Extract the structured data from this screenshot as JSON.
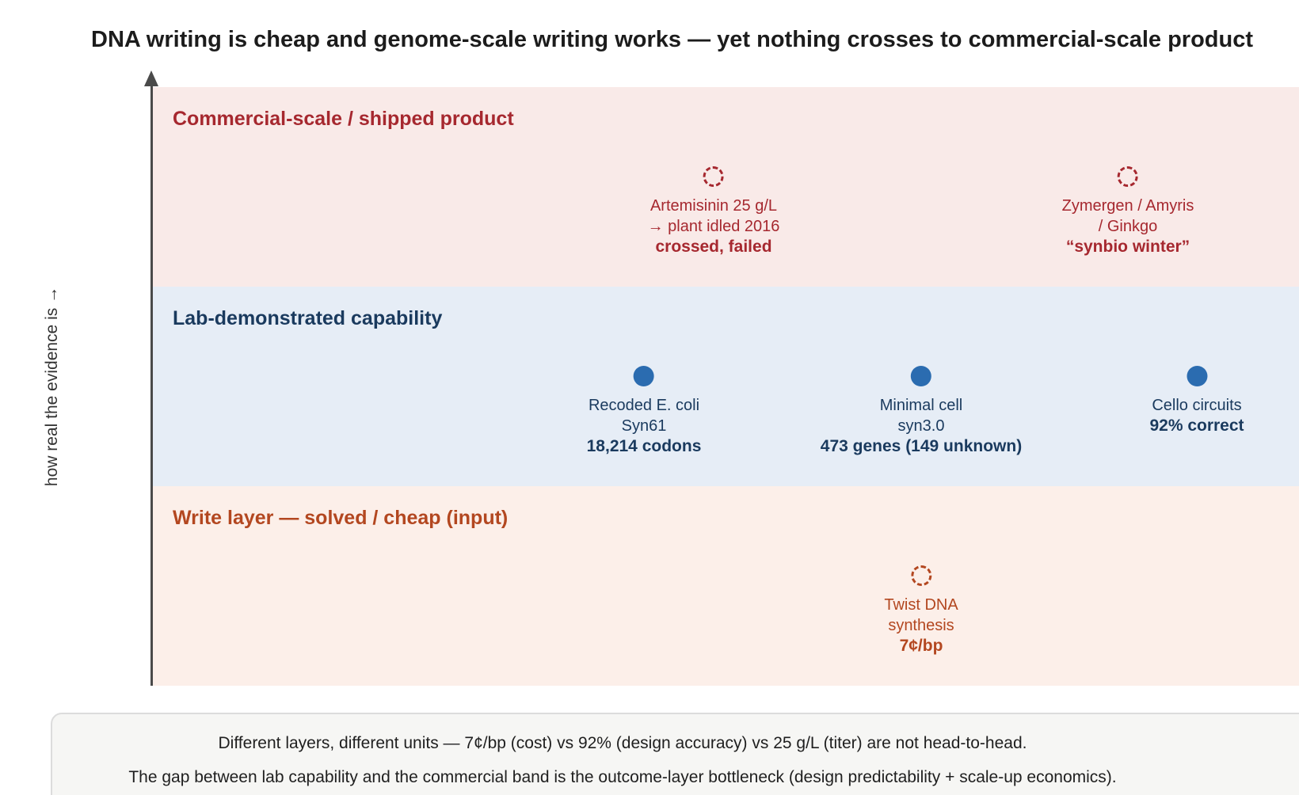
{
  "title": "DNA writing is cheap and genome-scale writing works — yet nothing crosses to commercial-scale product",
  "y_axis": {
    "label": "how real the evidence is →"
  },
  "colors": {
    "commercial": "#a6282f",
    "lab": "#1a3a5e",
    "write": "#b34720",
    "lab_dot": "#2b6cb0"
  },
  "bands": {
    "commercial": {
      "title": "Commercial-scale / shipped product",
      "items": [
        {
          "marker": "dashed-circle-icon",
          "line1": "Artemisinin 25 g/L",
          "line2": "→ plant idled 2016",
          "emphasis": "crossed, failed"
        },
        {
          "marker": "dashed-circle-icon",
          "line1": "Zymergen / Amyris",
          "line2": "/ Ginkgo",
          "emphasis": "“synbio winter”"
        }
      ]
    },
    "lab": {
      "title": "Lab-demonstrated capability",
      "items": [
        {
          "marker": "filled-dot-icon",
          "line1": "Recoded E. coli",
          "line2": "Syn61",
          "emphasis": "18,214 codons"
        },
        {
          "marker": "filled-dot-icon",
          "line1": "Minimal cell",
          "line2": "syn3.0",
          "emphasis": "473 genes (149 unknown)"
        },
        {
          "marker": "filled-dot-icon",
          "line1": "Cello circuits",
          "emphasis": "92% correct"
        }
      ]
    },
    "write": {
      "title": "Write layer — solved / cheap (input)",
      "items": [
        {
          "marker": "dashed-circle-icon",
          "line1": "Twist DNA",
          "line2": "synthesis",
          "emphasis": "7¢/bp"
        }
      ]
    }
  },
  "footer": {
    "line1": "Different layers, different units — 7¢/bp (cost) vs 92% (design accuracy) vs 25 g/L (titer) are not head-to-head.",
    "line2": "The gap between lab capability and the commercial band is the outcome-layer bottleneck (design predictability + scale-up economics)."
  }
}
